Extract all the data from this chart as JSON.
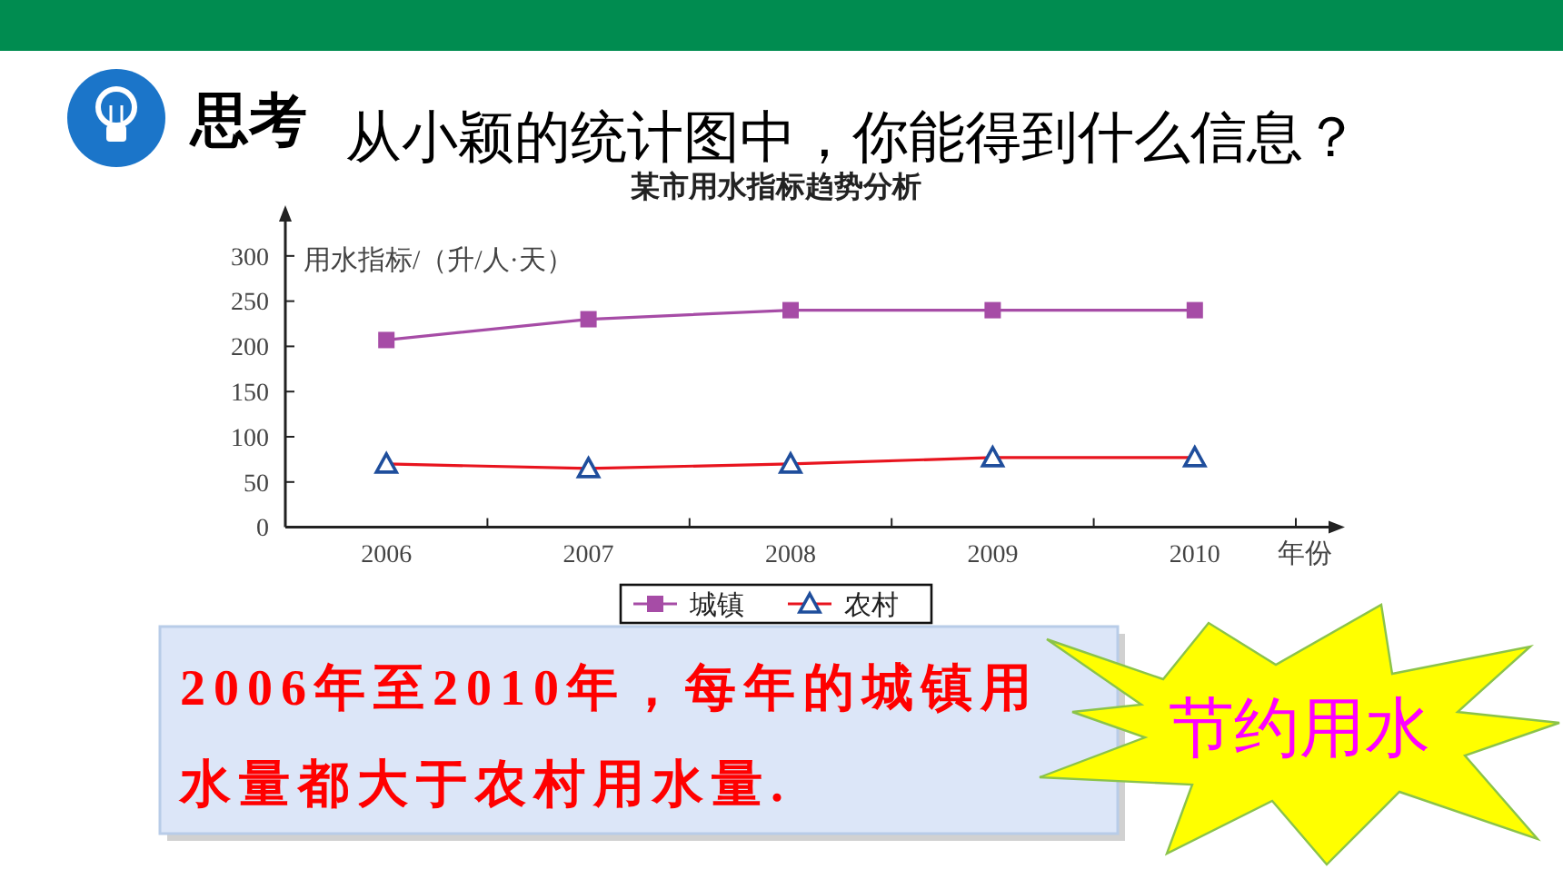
{
  "chart_data": {
    "type": "line",
    "title": "某市用水指标趋势分析",
    "xlabel": "年份",
    "ylabel": "用水指标/（升/人·天）",
    "categories": [
      "2006",
      "2007",
      "2008",
      "2009",
      "2010"
    ],
    "series": [
      {
        "name": "城镇",
        "color": "#a64ca6",
        "marker": "square",
        "values": [
          207,
          230,
          240,
          240,
          240
        ]
      },
      {
        "name": "农村",
        "color": "#e8141e",
        "colors": [
          "#1f4e9c",
          "#1f4e9c",
          "#1f4e9c",
          "#1f4e9c",
          "#1f4e9c"
        ],
        "marker": "triangle",
        "values": [
          70,
          65,
          70,
          77,
          77
        ]
      }
    ],
    "ylim": [
      0,
      340
    ],
    "yticks": [
      0,
      50,
      100,
      150,
      200,
      250,
      300
    ],
    "legend": "bottom",
    "line_style": "solid",
    "annotations": [
      "思考",
      "从小颖的统计图中，你能得到什么信息？",
      "2006年至2010年，每年的城镇用水量都大于农村用水量.",
      "节约用水"
    ]
  }
}
